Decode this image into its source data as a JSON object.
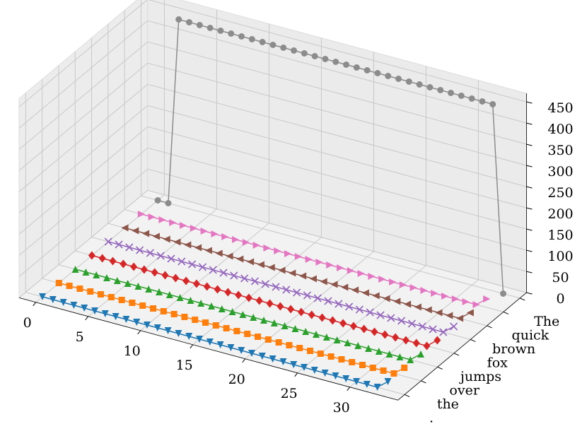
{
  "chart_data": {
    "type": "line3d",
    "x": [
      0,
      1,
      2,
      3,
      4,
      5,
      6,
      7,
      8,
      9,
      10,
      11,
      12,
      13,
      14,
      15,
      16,
      17,
      18,
      19,
      20,
      21,
      22,
      23,
      24,
      25,
      26,
      27,
      28,
      29,
      30,
      31,
      32,
      33
    ],
    "categories": [
      "The",
      "quick",
      "brown",
      "fox",
      "jumps",
      "over",
      "the",
      "."
    ],
    "series": [
      {
        "color": "#8c8c8c",
        "marker": "o",
        "values": [
          0,
          0,
          440,
          440,
          440,
          440,
          440,
          440,
          440,
          440,
          440,
          440,
          440,
          440,
          440,
          440,
          440,
          440,
          440,
          440,
          440,
          440,
          440,
          440,
          440,
          440,
          440,
          440,
          440,
          440,
          440,
          440,
          440,
          0
        ]
      },
      {
        "color": "#e377c2",
        "marker": ">",
        "values": [
          0,
          0,
          0,
          0,
          0,
          0,
          0,
          0,
          0,
          0,
          0,
          0,
          0,
          0,
          0,
          0,
          0,
          0,
          0,
          0,
          0,
          0,
          0,
          0,
          0,
          0,
          0,
          0,
          0,
          0,
          0,
          0,
          0,
          20
        ]
      },
      {
        "color": "#8c564b",
        "marker": "<",
        "values": [
          0,
          0,
          0,
          0,
          0,
          0,
          0,
          0,
          0,
          0,
          0,
          0,
          0,
          0,
          0,
          0,
          0,
          0,
          0,
          0,
          0,
          0,
          0,
          0,
          0,
          0,
          0,
          0,
          0,
          0,
          0,
          0,
          0,
          20
        ]
      },
      {
        "color": "#9467bd",
        "marker": "x",
        "values": [
          0,
          0,
          0,
          0,
          0,
          0,
          0,
          0,
          0,
          0,
          0,
          0,
          0,
          0,
          0,
          0,
          0,
          0,
          0,
          0,
          0,
          0,
          0,
          0,
          0,
          0,
          0,
          0,
          0,
          0,
          0,
          0,
          0,
          20
        ]
      },
      {
        "color": "#d62728",
        "marker": "D",
        "values": [
          0,
          0,
          0,
          0,
          0,
          0,
          0,
          0,
          0,
          0,
          0,
          0,
          0,
          0,
          0,
          0,
          0,
          0,
          0,
          0,
          0,
          0,
          0,
          0,
          0,
          0,
          0,
          0,
          0,
          0,
          0,
          0,
          0,
          20
        ]
      },
      {
        "color": "#2ca02c",
        "marker": "^",
        "values": [
          0,
          0,
          0,
          0,
          0,
          0,
          0,
          0,
          0,
          0,
          0,
          0,
          0,
          0,
          0,
          0,
          0,
          0,
          0,
          0,
          0,
          0,
          0,
          0,
          0,
          0,
          0,
          0,
          0,
          0,
          0,
          0,
          0,
          20
        ]
      },
      {
        "color": "#ff7f0e",
        "marker": "s",
        "values": [
          0,
          0,
          0,
          0,
          0,
          0,
          0,
          0,
          0,
          0,
          0,
          0,
          0,
          0,
          0,
          0,
          0,
          0,
          0,
          0,
          0,
          0,
          0,
          0,
          0,
          0,
          0,
          0,
          0,
          0,
          0,
          0,
          0,
          20
        ]
      },
      {
        "color": "#1f77b4",
        "marker": "v",
        "values": [
          0,
          0,
          0,
          0,
          0,
          0,
          0,
          0,
          0,
          0,
          0,
          0,
          0,
          0,
          0,
          0,
          0,
          0,
          0,
          0,
          0,
          0,
          0,
          0,
          0,
          0,
          0,
          0,
          0,
          0,
          0,
          0,
          0,
          20
        ]
      }
    ],
    "xlim": [
      -1.6,
      34.6
    ],
    "xticks": [
      0,
      5,
      10,
      15,
      20,
      25,
      30
    ],
    "zlim": [
      0,
      470
    ],
    "zticks": [
      0,
      50,
      100,
      150,
      200,
      250,
      300,
      350,
      400,
      450
    ],
    "grid": true
  }
}
